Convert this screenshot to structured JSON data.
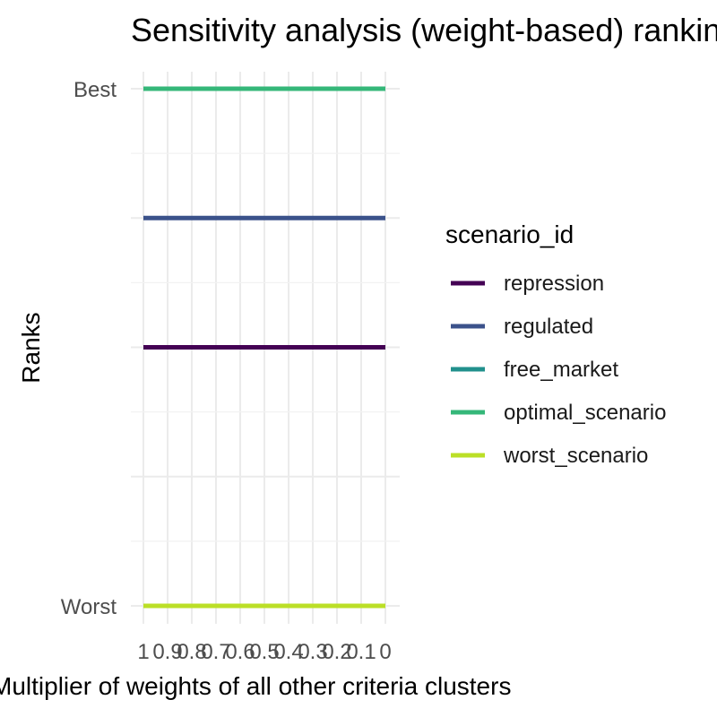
{
  "chart_data": {
    "type": "line",
    "title": "Sensitivity analysis (weight-based) ranking",
    "xlabel": "Multiplier of weights of all other criteria clusters",
    "ylabel": "Ranks",
    "x": [
      1,
      0.9,
      0.8,
      0.7,
      0.6,
      0.5,
      0.4,
      0.3,
      0.2,
      0.1,
      0
    ],
    "x_tick_labels": [
      "1",
      "0.9",
      "0.8",
      "0.7",
      "0.6",
      "0.5",
      "0.4",
      "0.3",
      "0.2",
      "0.1",
      "0"
    ],
    "xlim": [
      1,
      0
    ],
    "y_tick_labels": [
      {
        "rank": 1,
        "label": "Best"
      },
      {
        "rank": 5,
        "label": "Worst"
      }
    ],
    "ylim": [
      1,
      5
    ],
    "grid": true,
    "legend": {
      "title": "scenario_id",
      "position": "right"
    },
    "series": [
      {
        "name": "repression",
        "color": "#440154",
        "values": [
          3,
          3,
          3,
          3,
          3,
          3,
          3,
          3,
          3,
          3,
          3
        ]
      },
      {
        "name": "regulated",
        "color": "#3B528B",
        "values": [
          2,
          2,
          2,
          2,
          2,
          2,
          2,
          2,
          2,
          2,
          2
        ]
      },
      {
        "name": "free_market",
        "color": "#21908C",
        "values": [
          1,
          1,
          1,
          1,
          1,
          1,
          1,
          1,
          1,
          1,
          1
        ]
      },
      {
        "name": "optimal_scenario",
        "color": "#35B779",
        "values": [
          1,
          1,
          1,
          1,
          1,
          1,
          1,
          1,
          1,
          1,
          1
        ]
      },
      {
        "name": "worst_scenario",
        "color": "#BBDF27",
        "values": [
          5,
          5,
          5,
          5,
          5,
          5,
          5,
          5,
          5,
          5,
          5
        ]
      }
    ]
  }
}
